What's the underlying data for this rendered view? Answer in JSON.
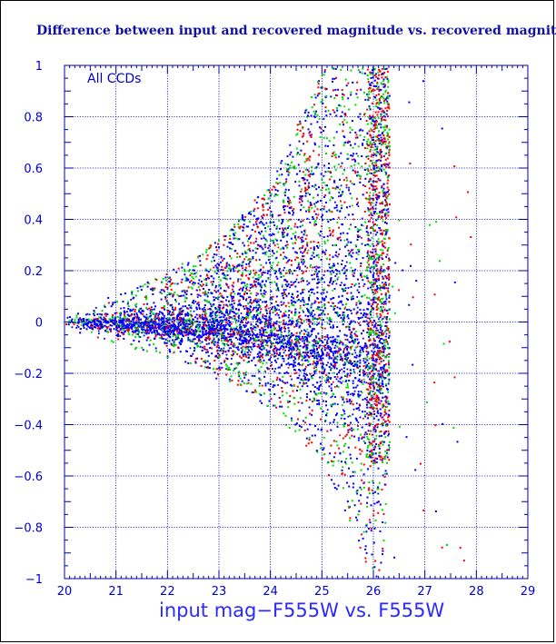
{
  "chart_data": {
    "type": "scatter",
    "title": "Difference between input and recovered magnitude vs. recovered magnitude",
    "xlabel": "input mag−F555W vs. F555W",
    "ylabel": "",
    "annotation": "All CCDs",
    "xlim": [
      20,
      29
    ],
    "ylim": [
      -1,
      1
    ],
    "xticks": [
      20,
      21,
      22,
      23,
      24,
      25,
      26,
      27,
      28,
      29
    ],
    "yticks": [
      -1,
      -0.8,
      -0.6,
      -0.4,
      -0.2,
      0,
      0.2,
      0.4,
      0.6,
      0.8,
      1
    ],
    "ytick_labels": [
      "−1",
      "−0.8",
      "−0.6",
      "−0.4",
      "−0.2",
      "0",
      "0.2",
      "0.4",
      "0.6",
      "0.8",
      "1"
    ],
    "grid": true,
    "series": [
      {
        "color": "#0000ff",
        "values_description": ""
      },
      {
        "color": "#00dd00"
      },
      {
        "color": "#ff0000"
      }
    ],
    "envelope": {
      "x": [
        20,
        21,
        22,
        23,
        24,
        25,
        25.5,
        26,
        26.2,
        26.3
      ],
      "upper": [
        0.03,
        0.05,
        0.09,
        0.15,
        0.25,
        0.45,
        0.8,
        1.0,
        1.0,
        0.0
      ],
      "lower": [
        -0.03,
        -0.05,
        -0.08,
        -0.12,
        -0.2,
        -0.32,
        -0.45,
        -0.6,
        -0.55,
        -0.1
      ],
      "center": [
        0.0,
        -0.005,
        -0.01,
        -0.02,
        -0.04,
        -0.06,
        -0.07,
        -0.08,
        -0.05,
        0.0
      ]
    }
  },
  "colors": {
    "frame": "#0000aa",
    "grid": "#0000aa",
    "tick_text": "#0000cc"
  }
}
